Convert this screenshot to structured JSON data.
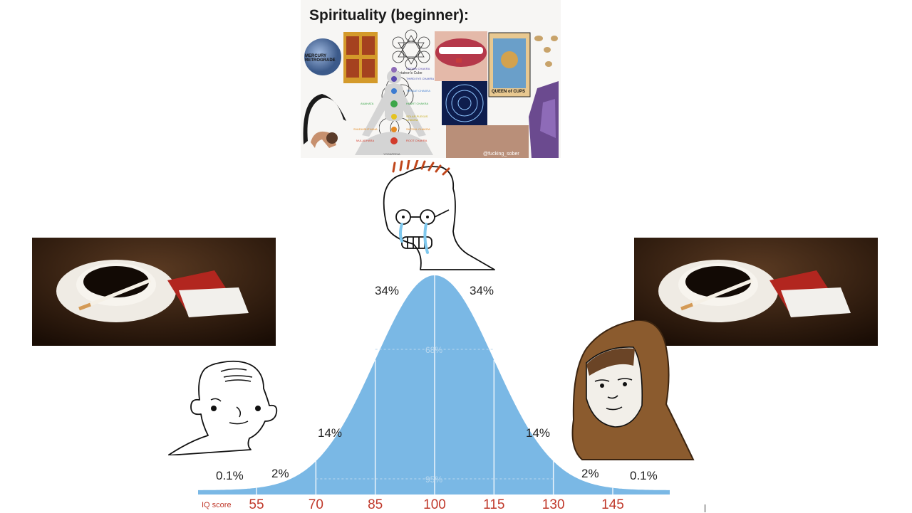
{
  "collage": {
    "title": "Spirituality (beginner):",
    "captions": {
      "mercury": "MERCURY RETROGRADE",
      "tarot": "QUEEN of CUPS",
      "chakra_top": "CROWN CHAKRA",
      "chakra_third": "THIRD EYE CHAKRA",
      "chakra_throat": "THROAT CHAKRA",
      "chakra_heart": "HEART CHAKRA",
      "chakra_solar": "SOLAR PLEXUS CHAKRA",
      "chakra_sacral": "SACRAL CHAKRA",
      "chakra_root": "ROOT CHAKRA",
      "metatron": "Metatron's Cube",
      "anahata": "ANAHATA",
      "svadhisthana": "SVADHISHTHANA",
      "muladhara": "MULADHARA",
      "yoga": "YOGAPEDIA",
      "handle": "@fucking_sober"
    }
  },
  "chart_data": {
    "type": "area",
    "title": "",
    "xlabel": "IQ score",
    "ylabel": "",
    "x_ticks": [
      55,
      70,
      85,
      100,
      115,
      130,
      145
    ],
    "segments": [
      {
        "from": 55,
        "to": 70,
        "label": "2%"
      },
      {
        "from": 70,
        "to": 85,
        "label": "14%"
      },
      {
        "from": 85,
        "to": 100,
        "label": "34%"
      },
      {
        "from": 100,
        "to": 115,
        "label": "34%"
      },
      {
        "from": 115,
        "to": 130,
        "label": "14%"
      },
      {
        "from": 130,
        "to": 145,
        "label": "2%"
      }
    ],
    "tails": [
      {
        "side": "left",
        "label": "0.1%"
      },
      {
        "side": "right",
        "label": "0.1%"
      }
    ],
    "inner_labels": {
      "one_sd": "68%",
      "two_sd": "95%"
    },
    "mean": 100,
    "sd": 15,
    "colors": {
      "fill": "#7ab8e5",
      "ticks": "#c0392b"
    }
  },
  "characters": {
    "left": "wojak-simple",
    "middle": "crying-nerd-wojak",
    "right": "hooded-monk-wojak"
  },
  "photos": {
    "left": "coffee-and-cigarettes",
    "right": "coffee-and-cigarettes"
  }
}
